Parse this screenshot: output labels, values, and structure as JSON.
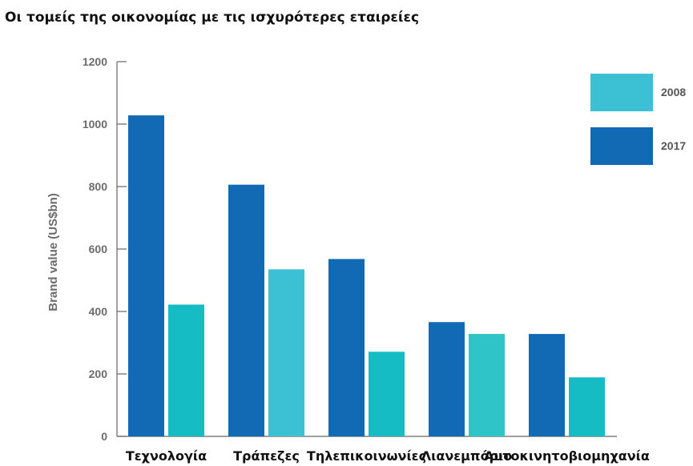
{
  "title": "Οι τομείς της οικονομίας με τις ισχυρότερες εταιρείες",
  "chart_data": {
    "type": "bar",
    "categories": [
      "Τεχνολογία",
      "Τράπεζες",
      "Τηλεπικοινωνίες",
      "Λιανεμπόριο",
      "Αυτοκινητοβιομηχανία"
    ],
    "series": [
      {
        "name": "2017",
        "color": "#126ab5",
        "values": [
          1028,
          806,
          568,
          366,
          328
        ]
      },
      {
        "name": "2008",
        "color": "#3cc1d4",
        "values": [
          422,
          535,
          271,
          328,
          189
        ]
      }
    ],
    "bar_colors_2008": [
      "#16bcc4",
      "#3cc1d4",
      "#16bcc4",
      "#2ec4c8",
      "#16bcc4"
    ],
    "ylabel": "Brand value (US$bn)",
    "ylim": [
      0,
      1200
    ],
    "yticks": [
      0,
      200,
      400,
      600,
      800,
      1000,
      1200
    ],
    "legend": {
      "position": "top-right",
      "items": [
        {
          "label": "2008",
          "color": "#3cc1d4"
        },
        {
          "label": "2017",
          "color": "#126ab5"
        }
      ]
    },
    "grid": false
  }
}
